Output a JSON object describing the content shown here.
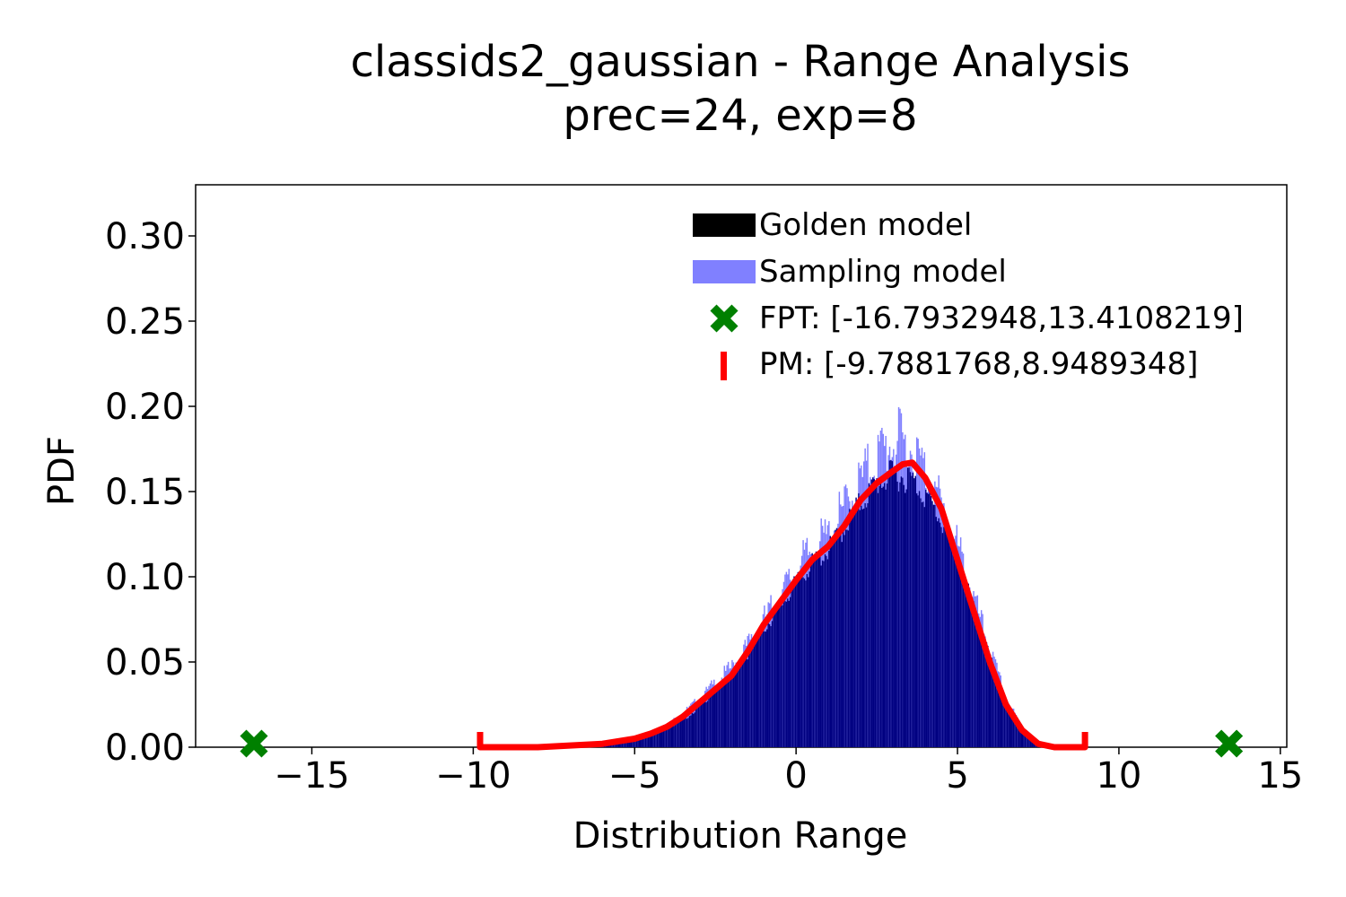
{
  "chart_data": {
    "type": "bar",
    "title": "classids2_gaussian - Range Analysis",
    "subtitle": "prec=24, exp=8",
    "xlabel": "Distribution Range",
    "ylabel": "PDF",
    "xlim": [
      -18.6,
      15.2
    ],
    "ylim": [
      0.0,
      0.33
    ],
    "xticks": [
      -15,
      -10,
      -5,
      0,
      5,
      10,
      15
    ],
    "xtick_labels": [
      "−15",
      "−10",
      "−5",
      "0",
      "5",
      "10",
      "15"
    ],
    "yticks": [
      0.0,
      0.05,
      0.1,
      0.15,
      0.2,
      0.25,
      0.3
    ],
    "ytick_labels": [
      "0.00",
      "0.05",
      "0.10",
      "0.15",
      "0.20",
      "0.25",
      "0.30"
    ],
    "grid": false,
    "legend_position": "top-right",
    "colors": {
      "golden": "#000000",
      "sampling": "#8080ff",
      "overlap": "#000080",
      "pm": "#ff0000",
      "fpt": "#008000"
    },
    "series": [
      {
        "name": "Golden model",
        "kind": "histogram",
        "x": [
          -7,
          -6,
          -5,
          -4.5,
          -4,
          -3.5,
          -3,
          -2.5,
          -2,
          -1.5,
          -1,
          -0.5,
          0,
          0.5,
          1,
          1.5,
          2,
          2.5,
          3,
          3.5,
          4,
          4.5,
          5,
          5.5,
          6,
          6.5,
          7,
          7.5
        ],
        "y": [
          0.0,
          0.002,
          0.004,
          0.007,
          0.011,
          0.016,
          0.024,
          0.034,
          0.043,
          0.055,
          0.07,
          0.083,
          0.097,
          0.108,
          0.116,
          0.13,
          0.144,
          0.155,
          0.16,
          0.158,
          0.148,
          0.132,
          0.11,
          0.08,
          0.052,
          0.026,
          0.01,
          0.002
        ]
      },
      {
        "name": "Sampling model",
        "kind": "histogram",
        "x": [
          -7,
          -6,
          -5,
          -4.5,
          -4,
          -3.5,
          -3,
          -2.5,
          -2,
          -1.5,
          -1,
          -0.5,
          0,
          0.5,
          1,
          1.5,
          2,
          2.5,
          3,
          3.5,
          4,
          4.5,
          5,
          5.5,
          6,
          6.5,
          7,
          7.5
        ],
        "y": [
          0.0,
          0.002,
          0.005,
          0.009,
          0.013,
          0.02,
          0.028,
          0.038,
          0.047,
          0.06,
          0.075,
          0.089,
          0.104,
          0.116,
          0.124,
          0.14,
          0.156,
          0.17,
          0.18,
          0.175,
          0.162,
          0.14,
          0.116,
          0.086,
          0.056,
          0.028,
          0.011,
          0.002
        ]
      },
      {
        "name": "PM density",
        "kind": "line",
        "x": [
          -9.79,
          -8,
          -7,
          -6,
          -5,
          -4.5,
          -4,
          -3.5,
          -3,
          -2.5,
          -2,
          -1.5,
          -1,
          -0.5,
          0,
          0.5,
          1,
          1.5,
          2,
          2.5,
          3,
          3.3,
          3.6,
          4,
          4.5,
          5,
          5.5,
          6,
          6.5,
          7,
          7.5,
          8,
          8.95
        ],
        "y": [
          0.0,
          0.0,
          0.001,
          0.002,
          0.005,
          0.008,
          0.012,
          0.018,
          0.026,
          0.034,
          0.042,
          0.056,
          0.072,
          0.085,
          0.098,
          0.11,
          0.118,
          0.13,
          0.145,
          0.155,
          0.162,
          0.166,
          0.167,
          0.158,
          0.14,
          0.11,
          0.08,
          0.05,
          0.025,
          0.01,
          0.002,
          0.0,
          0.0
        ]
      }
    ],
    "legend": [
      {
        "label": "Golden model",
        "marker": "bar",
        "color": "#000000"
      },
      {
        "label": "Sampling model",
        "marker": "bar",
        "color": "#8080ff"
      },
      {
        "label": "FPT: [-16.7932948,13.4108219]",
        "marker": "x",
        "color": "#008000"
      },
      {
        "label": "PM: [-9.7881768,8.9489348]",
        "marker": "vline",
        "color": "#ff0000"
      }
    ],
    "fpt_range": [
      -16.7932948,
      13.4108219
    ],
    "pm_range": [
      -9.7881768,
      8.9489348
    ]
  }
}
